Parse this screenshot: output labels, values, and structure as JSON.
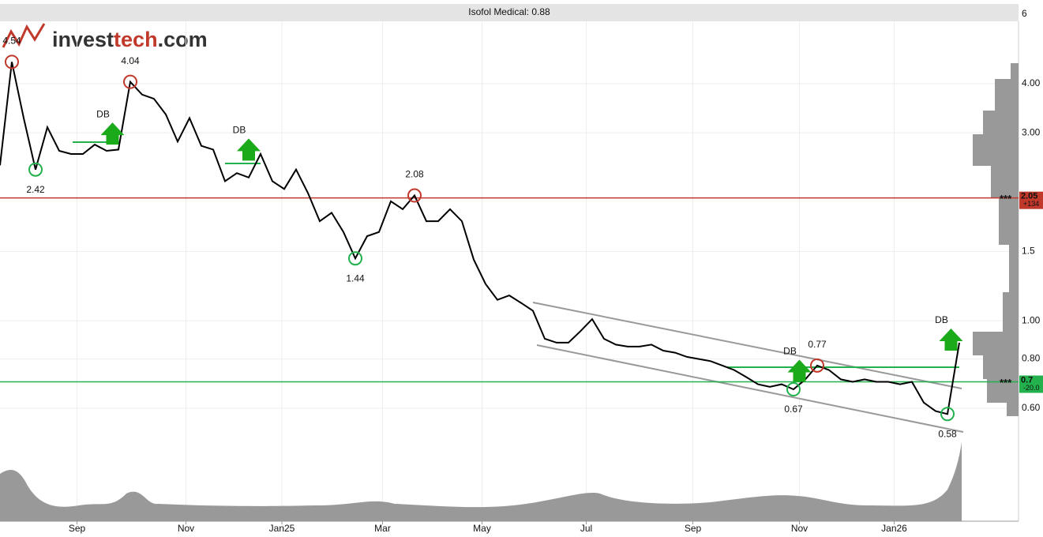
{
  "chart_data": {
    "type": "line",
    "title": "Isofol Medical: 0.88",
    "logo": [
      "invest",
      "tech",
      ".com"
    ],
    "log_scale": true,
    "grid": true,
    "ylim": [
      0.31,
      6.37
    ],
    "yticks": [
      6,
      {
        "value": 4,
        "label": "4.00"
      },
      {
        "value": 3,
        "label": "3.00"
      },
      1.5,
      {
        "value": 1,
        "label": "1.00"
      },
      {
        "value": 0.8,
        "label": "0.80"
      },
      {
        "value": 0.6,
        "label": "0.60"
      }
    ],
    "xlim": [
      0,
      86
    ],
    "xticks": [
      {
        "value": 6.5,
        "label": "Sep"
      },
      {
        "value": 15.7,
        "label": "Nov"
      },
      {
        "value": 23.8,
        "label": "Jan25"
      },
      {
        "value": 32.3,
        "label": "Mar"
      },
      {
        "value": 40.7,
        "label": "May"
      },
      {
        "value": 49.5,
        "label": "Jul"
      },
      {
        "value": 58.5,
        "label": "Sep"
      },
      {
        "value": 67.5,
        "label": "Nov"
      },
      {
        "value": 75.5,
        "label": "Jan26"
      }
    ],
    "x": [
      0,
      1,
      2,
      3,
      4,
      5,
      6,
      7,
      8,
      9,
      10,
      11,
      12,
      13,
      14,
      15,
      16,
      17,
      18,
      19,
      20,
      21,
      22,
      23,
      24,
      25,
      26,
      27,
      28,
      29,
      30,
      31,
      32,
      33,
      34,
      35,
      36,
      37,
      38,
      39,
      40,
      41,
      42,
      43,
      44,
      45,
      46,
      47,
      48,
      49,
      50,
      51,
      52,
      53,
      54,
      55,
      56,
      57,
      58,
      59,
      60,
      61,
      62,
      63,
      64,
      65,
      66,
      67,
      68,
      69,
      70,
      71,
      72,
      73,
      74,
      75,
      76,
      77,
      78,
      79,
      80,
      81
    ],
    "series": [
      {
        "color": "#000000",
        "values": [
          2.48,
          4.54,
          3.27,
          2.42,
          3.1,
          2.7,
          2.65,
          2.65,
          2.8,
          2.7,
          2.72,
          4.04,
          3.75,
          3.66,
          3.34,
          2.85,
          3.27,
          2.78,
          2.72,
          2.26,
          2.37,
          2.31,
          2.65,
          2.26,
          2.16,
          2.42,
          2.11,
          1.79,
          1.88,
          1.68,
          1.44,
          1.64,
          1.68,
          2.01,
          1.92,
          2.08,
          1.79,
          1.79,
          1.92,
          1.79,
          1.43,
          1.24,
          1.13,
          1.16,
          1.11,
          1.06,
          0.9,
          0.88,
          0.88,
          0.94,
          1.01,
          0.9,
          0.87,
          0.86,
          0.86,
          0.87,
          0.84,
          0.83,
          0.81,
          0.8,
          0.79,
          0.77,
          0.75,
          0.72,
          0.69,
          0.68,
          0.69,
          0.67,
          0.71,
          0.77,
          0.75,
          0.71,
          0.7,
          0.71,
          0.7,
          0.7,
          0.69,
          0.7,
          0.62,
          0.59,
          0.58,
          0.88
        ]
      }
    ],
    "highs": [
      {
        "x": 1,
        "value": 4.54
      },
      {
        "x": 11,
        "value": 4.04
      },
      {
        "x": 35,
        "value": 2.08
      },
      {
        "x": 69,
        "value": 0.77
      }
    ],
    "lows": [
      {
        "x": 3,
        "value": 2.42
      },
      {
        "x": 30,
        "value": 1.44
      },
      {
        "x": 67,
        "value": 0.67
      },
      {
        "x": 80,
        "value": 0.58
      }
    ],
    "signals": [
      {
        "label": "DB",
        "x": 9.5,
        "value": 2.8
      },
      {
        "label": "DB",
        "x": 21,
        "value": 2.55
      },
      {
        "label": "DB",
        "x": 67.5,
        "value": 0.7
      },
      {
        "label": "DB",
        "x": 80.3,
        "value": 0.84
      }
    ],
    "levels": [
      {
        "value": 2.05,
        "color": "#c0392b",
        "marker": "***",
        "change": "+134"
      },
      {
        "value": 0.7,
        "color": "#22b14c",
        "marker": "***",
        "change": "-20.0"
      }
    ]
  }
}
